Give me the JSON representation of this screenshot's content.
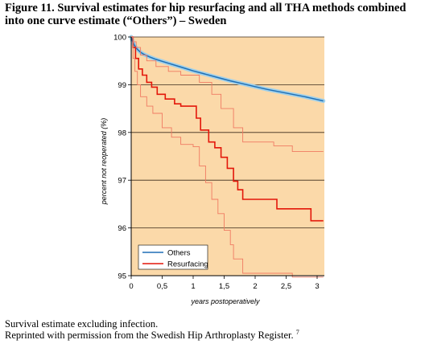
{
  "figure": {
    "title": "Figure 11. Survival estimates for hip resurfacing and all THA methods combined into one curve estimate (“Others”) – Sweden",
    "note_line1": "Survival estimate excluding infection.",
    "note_line2": "Reprinted with permission from the Swedish Hip Arthroplasty Register.",
    "note_ref": "7"
  },
  "chart_data": {
    "type": "line",
    "xlabel": "years postoperatively",
    "ylabel": "percent not reoperated (%)",
    "xlim": [
      0,
      3.1
    ],
    "ylim": [
      95,
      100
    ],
    "xticks": [
      0,
      0.5,
      1,
      1.5,
      2,
      2.5,
      3
    ],
    "xtick_labels": [
      "0",
      "0,5",
      "1",
      "1,5",
      "2",
      "2,5",
      "3"
    ],
    "yticks": [
      95,
      96,
      97,
      98,
      99,
      100
    ],
    "ytick_labels": [
      "95",
      "96",
      "97",
      "98",
      "99",
      "100"
    ],
    "grid": "horizontal",
    "legend_position": "bottom-left",
    "colors": {
      "background": "#fbd9a9",
      "others": "#1f6fb5",
      "others_band": "#9fd0ea",
      "resurfacing": "#e3170a",
      "resurfacing_ci": "#f07a62"
    },
    "series": [
      {
        "name": "Others",
        "style": "line",
        "x": [
          0,
          0.02,
          0.05,
          0.1,
          0.15,
          0.2,
          0.3,
          0.4,
          0.5,
          0.6,
          0.8,
          1.0,
          1.2,
          1.4,
          1.6,
          1.8,
          2.0,
          2.2,
          2.4,
          2.6,
          2.8,
          3.0,
          3.1
        ],
        "y": [
          100,
          99.92,
          99.83,
          99.74,
          99.68,
          99.64,
          99.58,
          99.53,
          99.49,
          99.45,
          99.37,
          99.29,
          99.22,
          99.15,
          99.08,
          99.02,
          98.96,
          98.9,
          98.85,
          98.8,
          98.75,
          98.69,
          98.66
        ]
      },
      {
        "name": "Resurfacing",
        "style": "step",
        "x": [
          0,
          0.03,
          0.07,
          0.12,
          0.18,
          0.25,
          0.33,
          0.42,
          0.55,
          0.7,
          0.8,
          1.05,
          1.12,
          1.25,
          1.35,
          1.45,
          1.55,
          1.65,
          1.72,
          1.8,
          2.05,
          2.35,
          2.9,
          3.1
        ],
        "y": [
          100,
          99.78,
          99.55,
          99.33,
          99.2,
          99.05,
          98.95,
          98.8,
          98.7,
          98.6,
          98.55,
          98.3,
          98.05,
          97.8,
          97.68,
          97.48,
          97.25,
          96.98,
          96.8,
          96.6,
          96.6,
          96.4,
          96.15,
          96.15
        ]
      },
      {
        "name": "",
        "style": "step-ci",
        "x": [
          0,
          0.03,
          0.08,
          0.15,
          0.25,
          0.4,
          0.6,
          0.8,
          1.1,
          1.3,
          1.45,
          1.65,
          1.8,
          2.3,
          2.6,
          3.1
        ],
        "y": [
          100,
          99.9,
          99.78,
          99.62,
          99.5,
          99.38,
          99.28,
          99.2,
          99.05,
          98.8,
          98.5,
          98.1,
          97.8,
          97.72,
          97.6,
          97.6
        ]
      },
      {
        "name": "",
        "style": "step-ci",
        "x": [
          0,
          0.03,
          0.06,
          0.1,
          0.15,
          0.25,
          0.35,
          0.5,
          0.65,
          0.8,
          1.0,
          1.1,
          1.2,
          1.3,
          1.4,
          1.5,
          1.6,
          1.65,
          1.8,
          2.05,
          2.6,
          3.1
        ],
        "y": [
          100,
          99.55,
          99.28,
          99.0,
          98.75,
          98.55,
          98.4,
          98.1,
          97.9,
          97.75,
          97.7,
          97.3,
          96.95,
          96.6,
          96.3,
          95.95,
          95.65,
          95.35,
          95.05,
          95.05,
          94.97,
          94.97
        ]
      }
    ]
  }
}
